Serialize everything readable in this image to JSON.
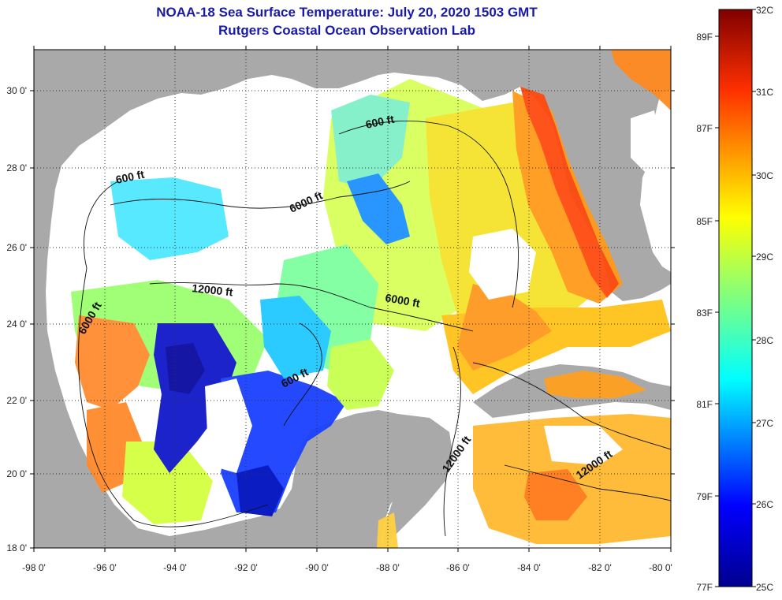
{
  "title": "NOAA-18 Sea Surface Temperature:  July 20, 2020 1503 GMT",
  "subtitle": "Rutgers Coastal Ocean Observation Lab",
  "x_ticks": [
    "-98 0'",
    "-96 0'",
    "-94 0'",
    "-92 0'",
    "-90 0'",
    "-88 0'",
    "-86 0'",
    "-84 0'",
    "-82 0'",
    "-80 0'"
  ],
  "y_ticks": [
    "30 0'",
    "28 0'",
    "26 0'",
    "24 0'",
    "22 0'",
    "20 0'",
    "18 0'"
  ],
  "colorbar": {
    "celsius": [
      "32C",
      "31C",
      "30C",
      "29C",
      "28C",
      "27C",
      "26C",
      "25C"
    ],
    "fahrenheit": [
      "89F",
      "87F",
      "85F",
      "83F",
      "81F",
      "79F",
      "77F"
    ]
  },
  "contour_labels": [
    "600 ft",
    "600 ft",
    "6000 ft",
    "6000 ft",
    "6000 ft",
    "12000 ft",
    "600 ft",
    "12000 ft",
    "12000 ft"
  ],
  "colors": {
    "land": "#a9a9a9",
    "cloud": "#ffffff",
    "title": "#1a1aa8"
  }
}
